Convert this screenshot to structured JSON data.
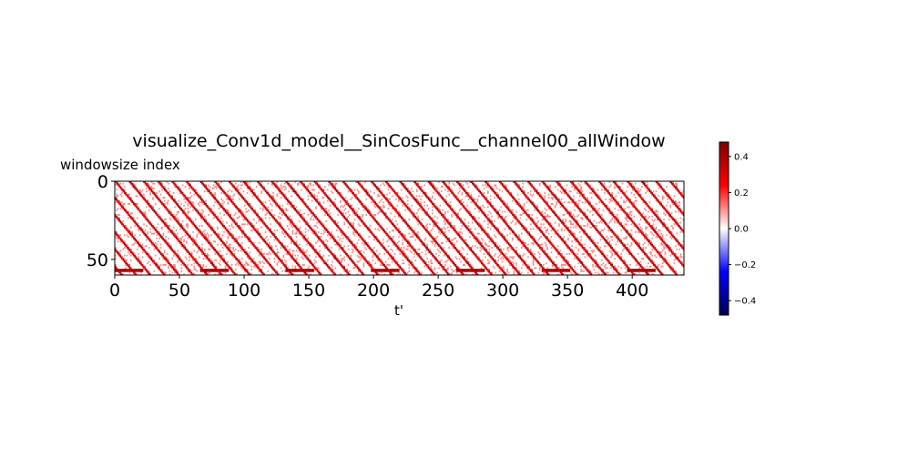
{
  "chart_data": {
    "type": "heatmap",
    "title": "visualize_Conv1d_model__SinCosFunc__channel00_allWindow",
    "xlabel": "t'",
    "ylabel": "windowsize index",
    "xlim": [
      0,
      440
    ],
    "ylim": [
      60,
      0
    ],
    "x_ticks": [
      "0",
      "50",
      "100",
      "150",
      "200",
      "250",
      "300",
      "350",
      "400"
    ],
    "x_tick_values": [
      0,
      50,
      100,
      150,
      200,
      250,
      300,
      350,
      400
    ],
    "y_ticks": [
      "0",
      "50"
    ],
    "y_tick_values": [
      0,
      50
    ],
    "grid": false,
    "colormap": "seismic",
    "colormap_stops": [
      "#00004c",
      "#0000ff",
      "#ffffff",
      "#ff0000",
      "#800000"
    ],
    "colorbar": {
      "vmin": -0.48,
      "vmax": 0.48,
      "ticks": [
        "0.4",
        "0.2",
        "0.0",
        "−0.2",
        "−0.4"
      ],
      "tick_values": [
        0.4,
        0.2,
        0.0,
        -0.2,
        -0.4
      ]
    },
    "pattern": {
      "description_values": "positive-weight diagonal stripes, period approx 66 in t', rising to the right",
      "stripe_period": 66,
      "stripe_slope": 1.0,
      "max_value": 0.45,
      "bottom_band_rows": [
        54,
        55,
        56,
        57,
        58,
        59
      ],
      "top_band_rows": [
        0,
        1,
        2
      ]
    }
  }
}
